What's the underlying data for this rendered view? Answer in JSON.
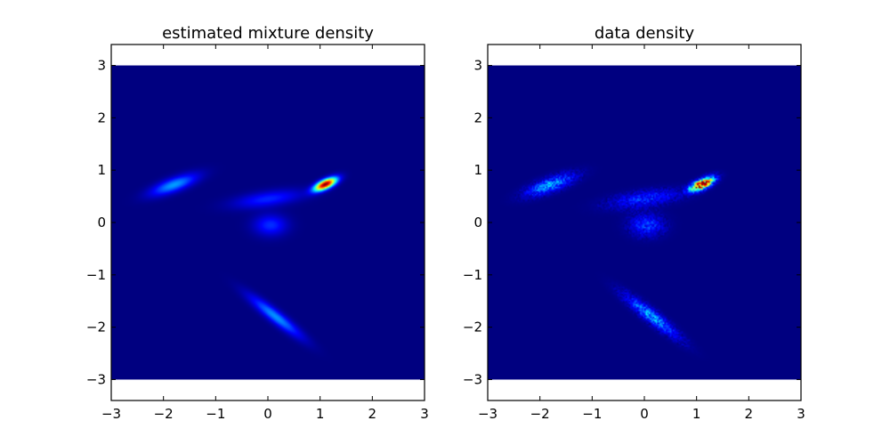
{
  "chart_data": [
    {
      "type": "heatmap",
      "title": "estimated mixture density",
      "xlabel": "",
      "ylabel": "",
      "xlim": [
        -3,
        3
      ],
      "ylim": [
        -3.4,
        3.4
      ],
      "extent": [
        -3,
        3,
        -3,
        3
      ],
      "xticks": [
        -3,
        -2,
        -1,
        0,
        1,
        2,
        3
      ],
      "yticks": [
        -3,
        -2,
        -1,
        0,
        1,
        2,
        3
      ],
      "xtick_labels": [
        "−3",
        "−2",
        "−1",
        "0",
        "1",
        "2",
        "3"
      ],
      "ytick_labels": [
        "−3",
        "−2",
        "−1",
        "0",
        "1",
        "2",
        "3"
      ],
      "colormap": "jet",
      "noisy": false,
      "components": [
        {
          "mx": 1.1,
          "my": 0.73,
          "sx": 0.16,
          "sy": 0.06,
          "angle": 25,
          "amp": 1.0
        },
        {
          "mx": -1.8,
          "my": 0.72,
          "sx": 0.32,
          "sy": 0.09,
          "angle": 20,
          "amp": 0.28
        },
        {
          "mx": 0.0,
          "my": 0.45,
          "sx": 0.45,
          "sy": 0.1,
          "angle": 8,
          "amp": 0.16
        },
        {
          "mx": 0.05,
          "my": -0.05,
          "sx": 0.22,
          "sy": 0.14,
          "angle": 0,
          "amp": 0.17
        },
        {
          "mx": 0.15,
          "my": -1.8,
          "sx": 0.42,
          "sy": 0.08,
          "angle": -38,
          "amp": 0.27
        }
      ]
    },
    {
      "type": "heatmap",
      "title": "data density",
      "xlabel": "",
      "ylabel": "",
      "xlim": [
        -3,
        3
      ],
      "ylim": [
        -3.4,
        3.4
      ],
      "extent": [
        -3,
        3,
        -3,
        3
      ],
      "xticks": [
        -3,
        -2,
        -1,
        0,
        1,
        2,
        3
      ],
      "yticks": [
        -3,
        -2,
        -1,
        0,
        1,
        2,
        3
      ],
      "xtick_labels": [
        "−3",
        "−2",
        "−1",
        "0",
        "1",
        "2",
        "3"
      ],
      "ytick_labels": [
        "−3",
        "−2",
        "−1",
        "0",
        "1",
        "2",
        "3"
      ],
      "colormap": "jet",
      "noisy": true,
      "components": [
        {
          "mx": 1.1,
          "my": 0.73,
          "sx": 0.16,
          "sy": 0.06,
          "angle": 25,
          "amp": 1.0
        },
        {
          "mx": -1.8,
          "my": 0.72,
          "sx": 0.32,
          "sy": 0.09,
          "angle": 20,
          "amp": 0.28
        },
        {
          "mx": 0.0,
          "my": 0.45,
          "sx": 0.45,
          "sy": 0.1,
          "angle": 8,
          "amp": 0.16
        },
        {
          "mx": 0.05,
          "my": -0.05,
          "sx": 0.22,
          "sy": 0.14,
          "angle": 0,
          "amp": 0.17
        },
        {
          "mx": 0.15,
          "my": -1.8,
          "sx": 0.42,
          "sy": 0.08,
          "angle": -38,
          "amp": 0.27
        }
      ]
    }
  ]
}
